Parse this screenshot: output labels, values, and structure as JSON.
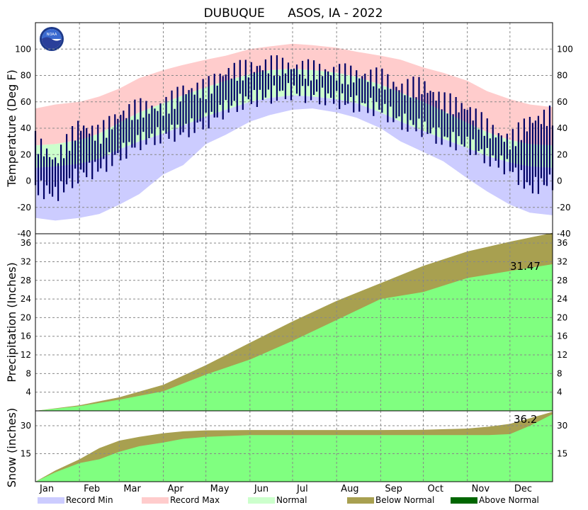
{
  "chart_data": {
    "title": "DUBUQUE      ASOS, IA - 2022",
    "type": "area",
    "months": [
      "Jan",
      "Feb",
      "Mar",
      "Apr",
      "May",
      "Jun",
      "Jul",
      "Aug",
      "Sep",
      "Oct",
      "Nov",
      "Dec"
    ],
    "legend": [
      {
        "name": "Record Min",
        "color": "#ccccff"
      },
      {
        "name": "Record Max",
        "color": "#ffcccc"
      },
      {
        "name": "Normal",
        "color": "#ccffcc"
      },
      {
        "name": "Below Normal",
        "color": "#a8a050"
      },
      {
        "name": "Above Normal",
        "color": "#006600"
      }
    ],
    "temperature": {
      "ylabel": "Temperature (Deg F)",
      "ylim": [
        -40,
        120
      ],
      "ticks": [
        -40,
        -20,
        0,
        20,
        40,
        60,
        80,
        100
      ],
      "series_keys": "day-of-year sampled every ~15 days",
      "x": [
        1,
        15,
        32,
        46,
        60,
        74,
        91,
        105,
        121,
        135,
        152,
        166,
        182,
        196,
        213,
        227,
        244,
        258,
        274,
        288,
        305,
        319,
        335,
        349,
        365
      ],
      "record_max": [
        55,
        58,
        60,
        64,
        70,
        78,
        84,
        88,
        92,
        95,
        100,
        102,
        104,
        103,
        101,
        98,
        95,
        92,
        86,
        82,
        76,
        68,
        62,
        58,
        56
      ],
      "record_min": [
        -28,
        -30,
        -28,
        -25,
        -18,
        -10,
        5,
        12,
        28,
        35,
        45,
        50,
        54,
        55,
        52,
        48,
        40,
        30,
        22,
        15,
        2,
        -8,
        -18,
        -24,
        -26
      ],
      "normal_high": [
        27,
        28,
        31,
        36,
        44,
        52,
        59,
        65,
        71,
        76,
        81,
        84,
        85,
        84,
        82,
        79,
        73,
        67,
        60,
        53,
        44,
        37,
        31,
        28,
        27
      ],
      "normal_low": [
        10,
        11,
        13,
        17,
        24,
        30,
        36,
        42,
        49,
        54,
        60,
        63,
        65,
        64,
        62,
        59,
        52,
        45,
        38,
        32,
        25,
        19,
        14,
        11,
        10
      ],
      "observed_high": [
        30,
        15,
        42,
        35,
        50,
        55,
        55,
        68,
        70,
        82,
        85,
        88,
        86,
        84,
        82,
        80,
        78,
        70,
        72,
        60,
        55,
        40,
        30,
        45,
        50
      ],
      "observed_low": [
        -5,
        -10,
        5,
        10,
        20,
        30,
        35,
        38,
        45,
        55,
        62,
        65,
        68,
        65,
        62,
        58,
        55,
        45,
        40,
        32,
        28,
        18,
        10,
        -5,
        0
      ]
    },
    "precipitation": {
      "ylabel": "Precipitation (Inches)",
      "ylim": [
        0,
        38
      ],
      "ticks": [
        4,
        8,
        12,
        16,
        20,
        24,
        28,
        32,
        36
      ],
      "x": [
        1,
        32,
        60,
        91,
        121,
        152,
        182,
        213,
        244,
        274,
        305,
        335,
        365
      ],
      "observed_cumulative": [
        0,
        1.0,
        2.4,
        4.2,
        7.8,
        11.0,
        15.0,
        19.5,
        24.0,
        25.5,
        28.5,
        30.0,
        31.47
      ],
      "normal_cumulative": [
        0,
        1.2,
        2.9,
        5.6,
        9.8,
        14.6,
        19.2,
        23.6,
        27.4,
        31.1,
        34.2,
        36.3,
        38.2
      ],
      "annotation": "31.47"
    },
    "snow": {
      "ylabel": "Snow (inches)",
      "ylim": [
        0,
        38
      ],
      "ticks": [
        15,
        30
      ],
      "x": [
        1,
        15,
        32,
        46,
        60,
        74,
        91,
        105,
        121,
        152,
        182,
        213,
        244,
        274,
        305,
        320,
        335,
        349,
        365
      ],
      "observed_cumulative": [
        0,
        5,
        10,
        12,
        16,
        19,
        21,
        23,
        24,
        25,
        25,
        25,
        25,
        25,
        25,
        25,
        25.5,
        30,
        36.2
      ],
      "normal_cumulative": [
        0,
        6,
        12,
        18,
        22,
        24,
        26,
        27,
        27.5,
        27.7,
        27.7,
        27.7,
        27.7,
        27.8,
        28.5,
        29.5,
        31,
        34,
        37.5
      ],
      "annotation": "36.2"
    }
  }
}
